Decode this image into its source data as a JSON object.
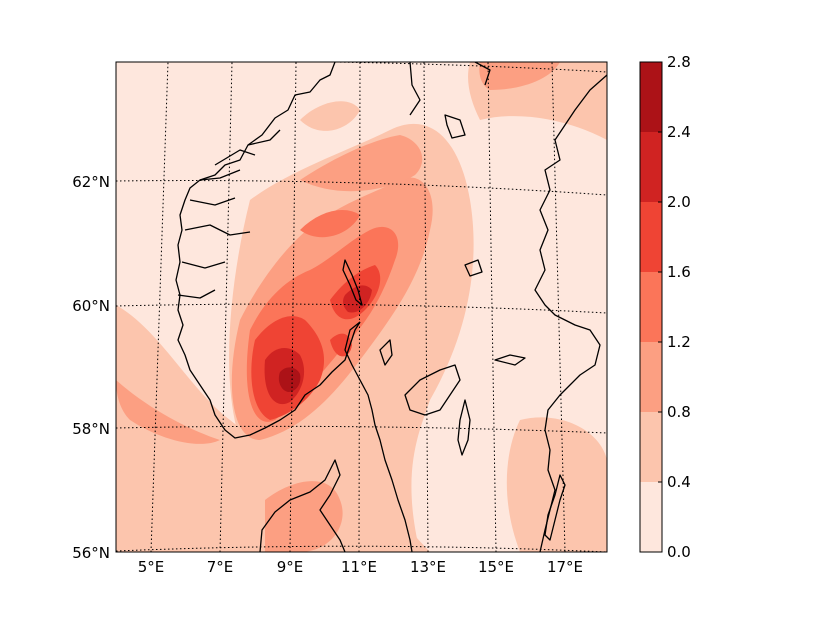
{
  "map": {
    "lat_labels": [
      "56°N",
      "58°N",
      "60°N",
      "62°N"
    ],
    "lon_labels": [
      "5°E",
      "7°E",
      "9°E",
      "11°E",
      "13°E",
      "15°E",
      "17°E"
    ]
  },
  "colorbar": {
    "tick_labels": [
      "0.0",
      "0.4",
      "0.8",
      "1.2",
      "1.6",
      "2.0",
      "2.4",
      "2.8"
    ],
    "levels": [
      0.0,
      0.4,
      0.8,
      1.2,
      1.6,
      2.0,
      2.4,
      2.8
    ],
    "colors": [
      "#fee7dd",
      "#fcc5ad",
      "#fc9f82",
      "#fb7559",
      "#ef4434",
      "#d02322",
      "#ac1217"
    ]
  },
  "colors": {
    "coastline": "#000000",
    "graticule": "#000000",
    "frame": "#000000"
  }
}
